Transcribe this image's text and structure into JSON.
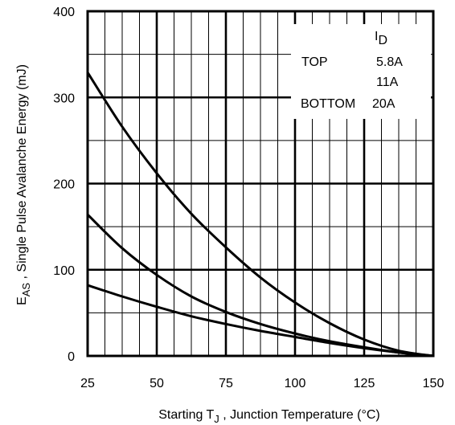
{
  "chart_data": {
    "type": "line",
    "title": "",
    "xlabel": {
      "prefix": "Starting T",
      "subscript": "J",
      "suffix": " , Junction Temperature (°C)"
    },
    "ylabel": {
      "prefix": "E",
      "subscript": "AS",
      "suffix": " , Single Pulse Avalanche Energy (mJ)"
    },
    "xlim": [
      25,
      150
    ],
    "ylim": [
      0,
      400
    ],
    "x_ticks": [
      "25",
      "50",
      "75",
      "100",
      "125",
      "150"
    ],
    "y_ticks": [
      "0",
      "100",
      "200",
      "300",
      "400"
    ],
    "grid": true,
    "legend": {
      "header_prefix": "I",
      "header_subscript": "D",
      "rows": [
        {
          "position": "TOP",
          "value": "5.8A"
        },
        {
          "position": "",
          "value": "11A"
        },
        {
          "position": "BOTTOM",
          "value": "20A"
        }
      ],
      "placement": "top-right"
    },
    "series": [
      {
        "name": "5.8A",
        "x": [
          25,
          37.5,
          50,
          62.5,
          75,
          87.5,
          100,
          112.5,
          125,
          137.5,
          150
        ],
        "y": [
          329,
          266,
          212,
          165,
          126,
          91,
          62,
          38,
          19,
          6,
          0
        ]
      },
      {
        "name": "11A",
        "x": [
          25,
          37.5,
          50,
          62.5,
          75,
          87.5,
          100,
          112.5,
          125,
          137.5,
          150
        ],
        "y": [
          164,
          125,
          94,
          69,
          51,
          37,
          26,
          17,
          10,
          4,
          0
        ]
      },
      {
        "name": "20A",
        "x": [
          25,
          37.5,
          50,
          62.5,
          75,
          87.5,
          100,
          112.5,
          125,
          137.5,
          150
        ],
        "y": [
          82,
          69,
          57,
          46,
          37,
          29,
          22,
          15,
          9,
          4,
          0
        ]
      }
    ]
  }
}
